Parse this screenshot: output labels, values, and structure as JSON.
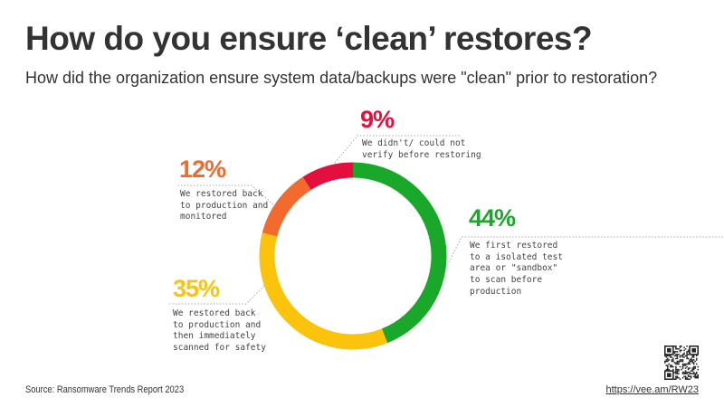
{
  "title": "How do you ensure ‘clean’ restores?",
  "subtitle": "How did the organization ensure system data/backups  were \"clean\" prior to restoration?",
  "chart_data": {
    "type": "pie",
    "donut": true,
    "start": "top, clockwise",
    "slices": [
      {
        "label": "44%",
        "value": 44,
        "description": "We first restored\nto a isolated test\narea or \"sandbox\"\nto scan before\nproduction",
        "color": "#1aa82b"
      },
      {
        "label": "35%",
        "value": 35,
        "description": "We restored back\nto production and\nthen immediately\nscanned for safety",
        "color": "#fbc30b"
      },
      {
        "label": "12%",
        "value": 12,
        "description": "We restored back\nto production and\nmonitored",
        "color": "#f26a2e"
      },
      {
        "label": "9%",
        "value": 9,
        "description": "We didn't/ could not\nverify before restoring",
        "color": "#e3103f"
      }
    ]
  },
  "footer": {
    "source": "Source: Ransomware Trends Report 2023",
    "url": "https://vee.am/RW23",
    "qr_icon": "qr-code-icon"
  }
}
